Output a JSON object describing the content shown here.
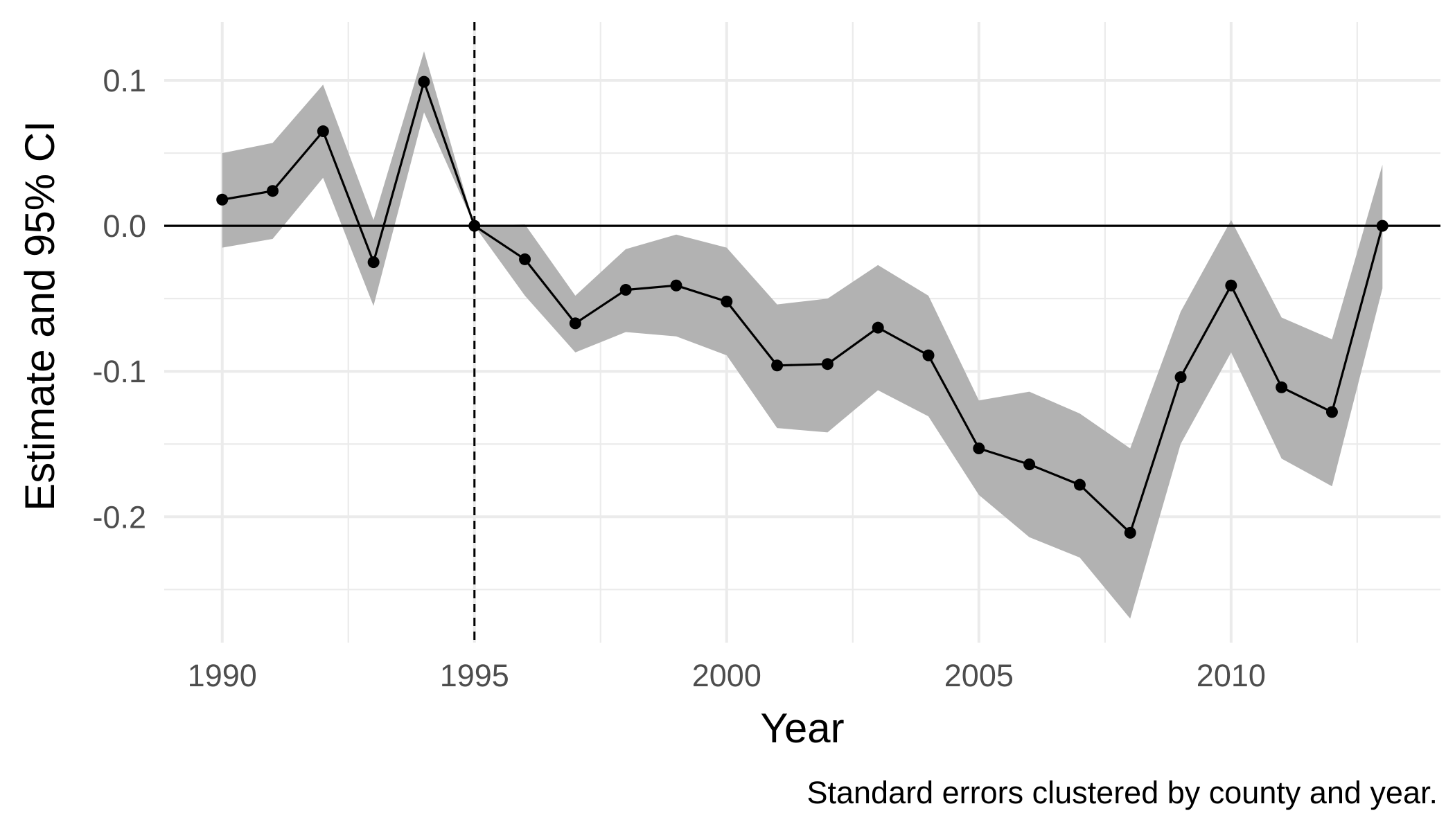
{
  "chart_data": {
    "type": "line",
    "xlabel": "Year",
    "ylabel": "Estimate and 95% CI",
    "caption": "Standard errors clustered by county and year.",
    "xlim": [
      1988.85,
      2014.15
    ],
    "ylim": [
      -0.2865,
      0.14
    ],
    "x_ticks": [
      1990,
      1995,
      2000,
      2005,
      2010
    ],
    "x_tick_labels": [
      "1990",
      "1995",
      "2000",
      "2005",
      "2010"
    ],
    "y_ticks": [
      0.1,
      0.0,
      -0.1,
      -0.2
    ],
    "y_tick_labels": [
      "0.1",
      "0.0",
      "-0.1",
      "-0.2"
    ],
    "reference_vline": 1995,
    "reference_hline": 0,
    "grid": true,
    "colors": {
      "ribbon": "#b2b2b2",
      "line": "#000000",
      "point": "#000000",
      "grid": "#ebebeb"
    },
    "x": [
      1990,
      1991,
      1992,
      1993,
      1994,
      1995,
      1996,
      1997,
      1998,
      1999,
      2000,
      2001,
      2002,
      2003,
      2004,
      2005,
      2006,
      2007,
      2008,
      2009,
      2010,
      2011,
      2012,
      2013
    ],
    "estimate": [
      0.018,
      0.024,
      0.065,
      -0.025,
      0.099,
      0.0,
      -0.023,
      -0.067,
      -0.044,
      -0.041,
      -0.052,
      -0.096,
      -0.095,
      -0.07,
      -0.089,
      -0.153,
      -0.164,
      -0.178,
      -0.211,
      -0.104,
      -0.041,
      -0.111,
      -0.128,
      0.0
    ],
    "ci_low": [
      -0.015,
      -0.009,
      0.033,
      -0.055,
      0.078,
      0.0,
      -0.048,
      -0.087,
      -0.073,
      -0.076,
      -0.089,
      -0.139,
      -0.142,
      -0.113,
      -0.131,
      -0.185,
      -0.214,
      -0.228,
      -0.27,
      -0.15,
      -0.087,
      -0.16,
      -0.179,
      -0.043
    ],
    "ci_high": [
      0.05,
      0.057,
      0.097,
      0.004,
      0.12,
      0.0,
      0.001,
      -0.048,
      -0.016,
      -0.006,
      -0.015,
      -0.054,
      -0.05,
      -0.027,
      -0.048,
      -0.12,
      -0.114,
      -0.129,
      -0.153,
      -0.059,
      0.004,
      -0.063,
      -0.078,
      0.042
    ]
  }
}
